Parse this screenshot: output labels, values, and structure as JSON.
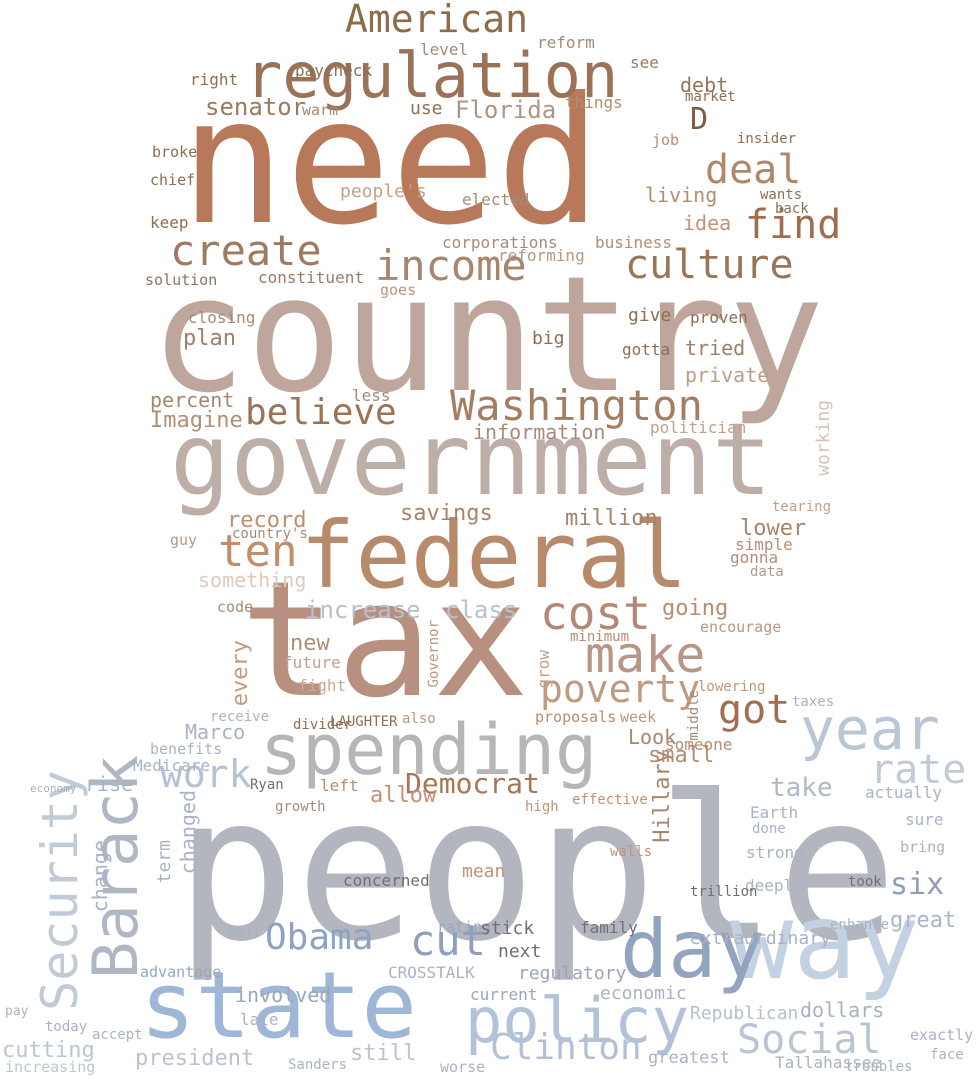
{
  "words": [
    {
      "text": "people",
      "color": "#b3b5bf"
    },
    {
      "text": "country",
      "color": "#bea69c"
    },
    {
      "text": "need",
      "color": "#b8795a"
    },
    {
      "text": "tax",
      "color": "#b89080"
    },
    {
      "text": "government",
      "color": "#bdaea8"
    },
    {
      "text": "federal",
      "color": "#b88a6c"
    },
    {
      "text": "state",
      "color": "#9fb6d6"
    },
    {
      "text": "way",
      "color": "#c3d1e2"
    },
    {
      "text": "spending",
      "color": "#b6b5b7"
    },
    {
      "text": "day",
      "color": "#94a3be"
    },
    {
      "text": "regulation",
      "color": "#9b7258"
    },
    {
      "text": "policy",
      "color": "#b3c2d9"
    },
    {
      "text": "Barack",
      "color": "#b0b7c4"
    },
    {
      "text": "year",
      "color": "#b9c6d6"
    },
    {
      "text": "Security",
      "color": "#c1cad7"
    },
    {
      "text": "income",
      "color": "#a8856c"
    },
    {
      "text": "create",
      "color": "#9f7a60"
    },
    {
      "text": "culture",
      "color": "#9a7658"
    },
    {
      "text": "Washington",
      "color": "#a47e63"
    },
    {
      "text": "believe",
      "color": "#9a7457"
    },
    {
      "text": "American",
      "color": "#8e6c4b"
    },
    {
      "text": "deal",
      "color": "#b0876a"
    },
    {
      "text": "find",
      "color": "#a06e4e"
    },
    {
      "text": "make",
      "color": "#b89585"
    },
    {
      "text": "cost",
      "color": "#b48878"
    },
    {
      "text": "poverty",
      "color": "#bf9a7f"
    },
    {
      "text": "got",
      "color": "#a06f52"
    },
    {
      "text": "ten",
      "color": "#c38c6c"
    },
    {
      "text": "Obama",
      "color": "#8da3c3"
    },
    {
      "text": "cut",
      "color": "#8ea0bb"
    },
    {
      "text": "Clinton",
      "color": "#b4c0d3"
    },
    {
      "text": "Social",
      "color": "#b9c5d5"
    },
    {
      "text": "rate",
      "color": "#c1cad7"
    },
    {
      "text": "six",
      "color": "#8d9ebb"
    },
    {
      "text": "work",
      "color": "#b4c2d7"
    },
    {
      "text": "Democrat",
      "color": "#a77656"
    },
    {
      "text": "D",
      "color": "#7d5d44"
    },
    {
      "text": "Florida",
      "color": "#ad9685"
    },
    {
      "text": "senator",
      "color": "#9c7a60"
    },
    {
      "text": "debt",
      "color": "#94765c"
    },
    {
      "text": "Hillary",
      "color": "#a8856e"
    },
    {
      "text": "take",
      "color": "#aeb8c7"
    },
    {
      "text": "Look",
      "color": "#a68870"
    },
    {
      "text": "increase",
      "color": "#b7c0cc"
    },
    {
      "text": "million",
      "color": "#a28469"
    },
    {
      "text": "class",
      "color": "#b8c1cc"
    },
    {
      "text": "going",
      "color": "#b58d73"
    },
    {
      "text": "Imagine",
      "color": "#b38f78"
    },
    {
      "text": "information",
      "color": "#a48c7a"
    },
    {
      "text": "percent",
      "color": "#a48770"
    },
    {
      "text": "private",
      "color": "#c09e86"
    },
    {
      "text": "tried",
      "color": "#9f7d66"
    },
    {
      "text": "plan",
      "color": "#9f7f69"
    },
    {
      "text": "great",
      "color": "#a9b6c8"
    },
    {
      "text": "allow",
      "color": "#c3917a"
    },
    {
      "text": "small",
      "color": "#b58d73"
    },
    {
      "text": "lower",
      "color": "#a88468"
    },
    {
      "text": "savings",
      "color": "#a7846b"
    },
    {
      "text": "record",
      "color": "#bf8f74"
    },
    {
      "text": "new",
      "color": "#b18d73"
    },
    {
      "text": "every",
      "color": "#c59b80"
    },
    {
      "text": "Marco",
      "color": "#a9b3c3"
    },
    {
      "text": "still",
      "color": "#b9c3d1"
    },
    {
      "text": "president",
      "color": "#b9c3d1"
    },
    {
      "text": "involved",
      "color": "#9aa7ba"
    },
    {
      "text": "dollars",
      "color": "#a5b2c4"
    },
    {
      "text": "Republican",
      "color": "#b4bfcf"
    },
    {
      "text": "extraordinary",
      "color": "#a9b3c3"
    },
    {
      "text": "living",
      "color": "#b58d73"
    },
    {
      "text": "idea",
      "color": "#c3917a"
    },
    {
      "text": "job",
      "color": "#b58d73"
    },
    {
      "text": "things",
      "color": "#b58d73"
    },
    {
      "text": "use",
      "color": "#8c6f55"
    },
    {
      "text": "elected",
      "color": "#a48c7a"
    },
    {
      "text": "people's",
      "color": "#c3a08d"
    },
    {
      "text": "corporations",
      "color": "#a48c7a"
    },
    {
      "text": "business",
      "color": "#b58d73"
    },
    {
      "text": "reforming",
      "color": "#b89783"
    },
    {
      "text": "constituent",
      "color": "#9a7c66"
    },
    {
      "text": "solution",
      "color": "#8f7461"
    },
    {
      "text": "keep",
      "color": "#8c6f55"
    },
    {
      "text": "chief",
      "color": "#8c6f55"
    },
    {
      "text": "broke",
      "color": "#8c6f55"
    },
    {
      "text": "right",
      "color": "#8c6f55"
    },
    {
      "text": "paycheck",
      "color": "#8c6f55"
    },
    {
      "text": "warm",
      "color": "#a38a78"
    },
    {
      "text": "level",
      "color": "#a58b78"
    },
    {
      "text": "reform",
      "color": "#a38a78"
    },
    {
      "text": "see",
      "color": "#9a7c66"
    },
    {
      "text": "market",
      "color": "#8c6f55"
    },
    {
      "text": "insider",
      "color": "#8c6f55"
    },
    {
      "text": "wants",
      "color": "#8c6f55"
    },
    {
      "text": "back",
      "color": "#8c6f55"
    },
    {
      "text": "proven",
      "color": "#8c6f55"
    },
    {
      "text": "give",
      "color": "#8c6f55"
    },
    {
      "text": "gotta",
      "color": "#8c6f55"
    },
    {
      "text": "big",
      "color": "#8c6f55"
    },
    {
      "text": "goes",
      "color": "#c3917a"
    },
    {
      "text": "closing",
      "color": "#a58b78"
    },
    {
      "text": "less",
      "color": "#a58b78"
    },
    {
      "text": "politician",
      "color": "#c3a08d"
    },
    {
      "text": "working",
      "color": "#d7c3b3"
    },
    {
      "text": "tearing",
      "color": "#c3a08d"
    },
    {
      "text": "simple",
      "color": "#b58d73"
    },
    {
      "text": "gonna",
      "color": "#b58d73"
    },
    {
      "text": "data",
      "color": "#b89783"
    },
    {
      "text": "encourage",
      "color": "#b89783"
    },
    {
      "text": "minimum",
      "color": "#b58d73"
    },
    {
      "text": "lowering",
      "color": "#b89783"
    },
    {
      "text": "proposals",
      "color": "#b58d73"
    },
    {
      "text": "week",
      "color": "#b89783"
    },
    {
      "text": "someone",
      "color": "#b58d73"
    },
    {
      "text": "also",
      "color": "#b89783"
    },
    {
      "text": "Governor",
      "color": "#b89783"
    },
    {
      "text": "fight",
      "color": "#c7ab98"
    },
    {
      "text": "future",
      "color": "#c3a08d"
    },
    {
      "text": "code",
      "color": "#a58b78"
    },
    {
      "text": "something",
      "color": "#ddcbbd"
    },
    {
      "text": "guy",
      "color": "#b89783"
    },
    {
      "text": "country's",
      "color": "#a58b78"
    },
    {
      "text": "grow",
      "color": "#c3a08d"
    },
    {
      "text": "middle",
      "color": "#a58b78"
    },
    {
      "text": "growth",
      "color": "#a58b78"
    },
    {
      "text": "left",
      "color": "#b58d73"
    },
    {
      "text": "high",
      "color": "#c3917a"
    },
    {
      "text": "effective",
      "color": "#c3917a"
    },
    {
      "text": "concerned",
      "color": "#6f6f74"
    },
    {
      "text": "mean",
      "color": "#c3917a"
    },
    {
      "text": "rating",
      "color": "#9aa7ba"
    },
    {
      "text": "next",
      "color": "#6f6f74"
    },
    {
      "text": "stick",
      "color": "#6f6f74"
    },
    {
      "text": "family",
      "color": "#6f6f74"
    },
    {
      "text": "regulatory",
      "color": "#9aa7ba"
    },
    {
      "text": "current",
      "color": "#9aa7ba"
    },
    {
      "text": "economic",
      "color": "#a9b3c3"
    },
    {
      "text": "CROSSTALK",
      "color": "#a9b3c3"
    },
    {
      "text": "advantage",
      "color": "#9aa7ba"
    },
    {
      "text": "hell",
      "color": "#a9b3c3"
    },
    {
      "text": "term",
      "color": "#a9b3c3"
    },
    {
      "text": "changed",
      "color": "#a9b3c3"
    },
    {
      "text": "change",
      "color": "#a9b3c3"
    },
    {
      "text": "rise",
      "color": "#a9b3c3"
    },
    {
      "text": "benefits",
      "color": "#a9b3c3"
    },
    {
      "text": "Medicare",
      "color": "#a9b3c3"
    },
    {
      "text": "receive",
      "color": "#a9b3c3"
    },
    {
      "text": "divider",
      "color": "#8c6f55"
    },
    {
      "text": "LAUGHTER",
      "color": "#8c6f55"
    },
    {
      "text": "Ryan",
      "color": "#6f6f74"
    },
    {
      "text": "cutting",
      "color": "#bcc6d3"
    },
    {
      "text": "accept",
      "color": "#a9b3c3"
    },
    {
      "text": "late",
      "color": "#a9b3c3"
    },
    {
      "text": "Sanders",
      "color": "#a9b3c3"
    },
    {
      "text": "worse",
      "color": "#a9b3c3"
    },
    {
      "text": "greatest",
      "color": "#a9b3c3"
    },
    {
      "text": "Tallahassee",
      "color": "#a9b3c3"
    },
    {
      "text": "troubles",
      "color": "#a9b3c3"
    },
    {
      "text": "face",
      "color": "#a9b3c3"
    },
    {
      "text": "exactly",
      "color": "#a9b3c3"
    },
    {
      "text": "bring",
      "color": "#a9b3c3"
    },
    {
      "text": "sure",
      "color": "#a9b3c3"
    },
    {
      "text": "actually",
      "color": "#a9b3c3"
    },
    {
      "text": "taxes",
      "color": "#a9b3c3"
    },
    {
      "text": "Earth",
      "color": "#a9b3c3"
    },
    {
      "text": "done",
      "color": "#a9b3c3"
    },
    {
      "text": "strong",
      "color": "#a9b3c3"
    },
    {
      "text": "deeply",
      "color": "#a9b3c3"
    },
    {
      "text": "took",
      "color": "#6f6f74"
    },
    {
      "text": "enhance",
      "color": "#a9b3c3"
    },
    {
      "text": "economy",
      "color": "#a9b3c3"
    },
    {
      "text": "increasing",
      "color": "#bcc6d3"
    },
    {
      "text": "today",
      "color": "#a9b3c3"
    },
    {
      "text": "pay",
      "color": "#a9b3c3"
    },
    {
      "text": "trillion",
      "color": "#6f6f74"
    },
    {
      "text": "walls",
      "color": "#c3917a"
    }
  ]
}
